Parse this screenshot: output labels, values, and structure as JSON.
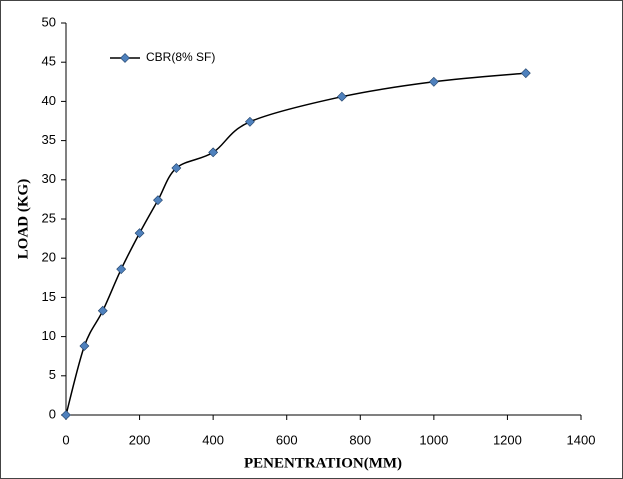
{
  "chart_data": {
    "type": "line",
    "x_label": "PENENTRATION(MM)",
    "y_label": "LOAD (KG)",
    "x": [
      0,
      50,
      100,
      150,
      200,
      250,
      300,
      400,
      500,
      750,
      1000,
      1250
    ],
    "series": [
      {
        "name": "CBR(8% SF)",
        "color": "#000000",
        "values": [
          0,
          8.8,
          13.3,
          18.6,
          23.2,
          27.4,
          31.5,
          33.5,
          37.4,
          40.6,
          42.5,
          43.6
        ]
      }
    ],
    "xlim": [
      0,
      1400
    ],
    "xticks": [
      0,
      200,
      400,
      600,
      800,
      1000,
      1200,
      1400
    ],
    "ylim": [
      0,
      50
    ],
    "yticks": [
      0,
      5,
      10,
      15,
      20,
      25,
      30,
      35,
      40,
      45,
      50
    ],
    "marker_color": "#4f81bd",
    "legend": "upper left",
    "grid": false
  }
}
